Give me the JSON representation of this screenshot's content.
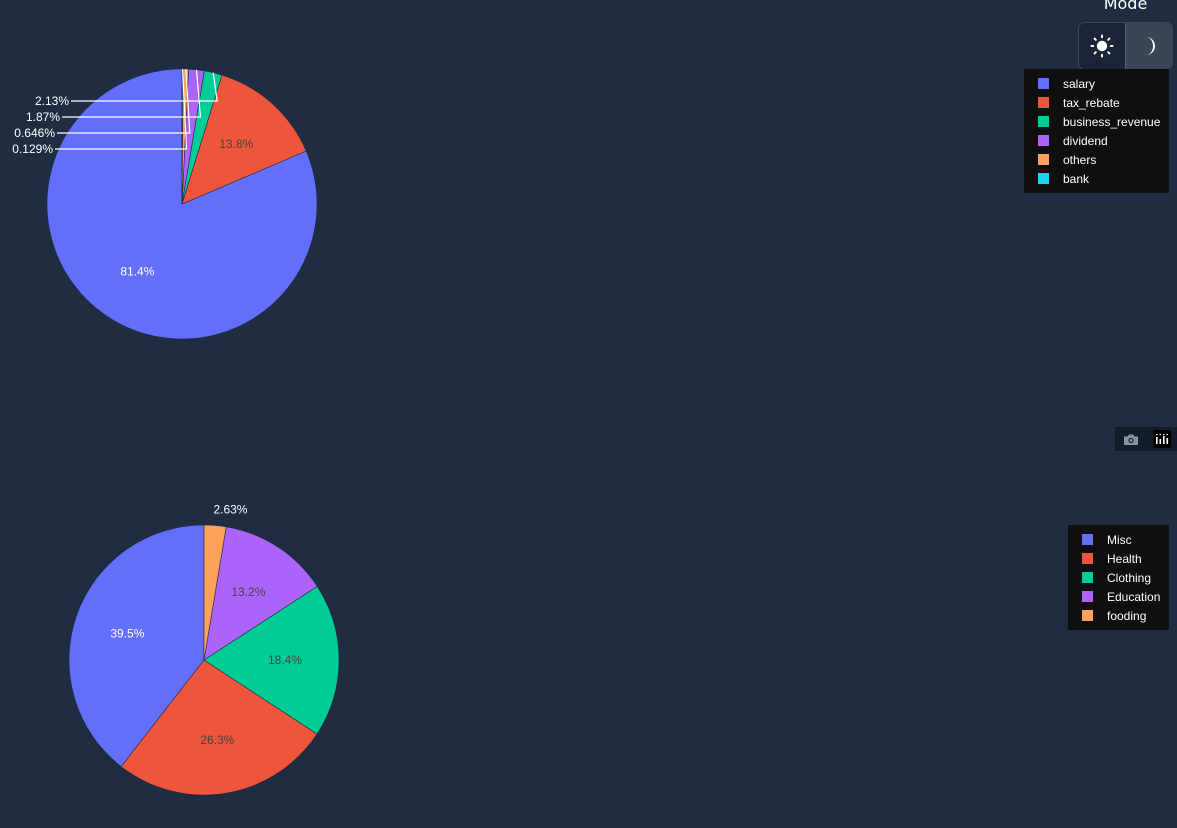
{
  "mode_switch": {
    "label": "Mode",
    "options": [
      "light",
      "dark"
    ],
    "light_icon": "sun-icon",
    "dark_icon": "moon-icon",
    "selected": "dark"
  },
  "colors": {
    "background": "#1f2c42",
    "legend_background": "#0f0f0f",
    "label_text": "#ffffff"
  },
  "modebar": {
    "buttons": [
      "camera-icon",
      "plotly-logo-icon"
    ]
  },
  "chart_data": [
    {
      "type": "pie",
      "categories": [
        "salary",
        "tax_rebate",
        "business_revenue",
        "dividend",
        "others",
        "bank"
      ],
      "values": [
        81.4,
        13.8,
        2.13,
        1.87,
        0.646,
        0.129
      ],
      "labels": [
        "81.4%",
        "13.8%",
        "2.13%",
        "1.87%",
        "0.646%",
        "0.129%"
      ],
      "colors": [
        "#636efa",
        "#ef553b",
        "#00cc96",
        "#ab63fa",
        "#ffa15a",
        "#19d3f3"
      ],
      "legend_placement": "top-right"
    },
    {
      "type": "pie",
      "categories": [
        "Misc",
        "Health",
        "Clothing",
        "Education",
        "fooding"
      ],
      "values": [
        39.5,
        26.3,
        18.4,
        13.2,
        2.63
      ],
      "labels": [
        "39.5%",
        "26.3%",
        "18.4%",
        "13.2%",
        "2.63%"
      ],
      "colors": [
        "#636efa",
        "#ef553b",
        "#00cc96",
        "#ab63fa",
        "#ffa15a"
      ],
      "legend_placement": "top-right"
    }
  ]
}
